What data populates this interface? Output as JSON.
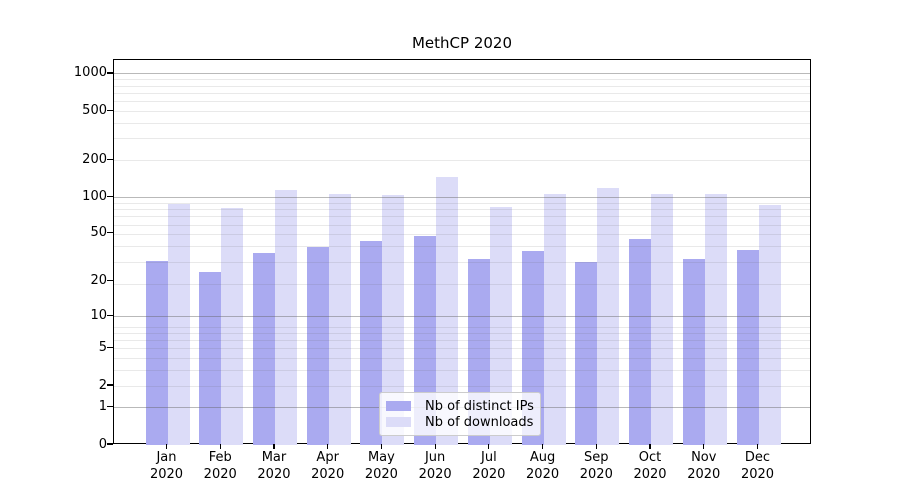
{
  "chart_data": {
    "type": "bar",
    "title": "MethCP 2020",
    "months": [
      "Jan",
      "Feb",
      "Mar",
      "Apr",
      "May",
      "Jun",
      "Jul",
      "Aug",
      "Sep",
      "Oct",
      "Nov",
      "Dec"
    ],
    "year": "2020",
    "categories": [
      "Jan 2020",
      "Feb 2020",
      "Mar 2020",
      "Apr 2020",
      "May 2020",
      "Jun 2020",
      "Jul 2020",
      "Aug 2020",
      "Sep 2020",
      "Oct 2020",
      "Nov 2020",
      "Dec 2020"
    ],
    "series": [
      {
        "name": "Nb of distinct IPs",
        "color": "#aaaaf0",
        "values": [
          30,
          24,
          35,
          39,
          44,
          48,
          31,
          36,
          29,
          45,
          31,
          37
        ]
      },
      {
        "name": "Nb of downloads",
        "color": "#dcdcf8",
        "values": [
          88,
          82,
          115,
          107,
          104,
          145,
          83,
          106,
          119,
          107,
          106,
          86
        ]
      }
    ],
    "y_ticks": [
      0,
      1,
      2,
      5,
      10,
      20,
      50,
      100,
      200,
      500,
      1000
    ],
    "major_grid_values": [
      1,
      10,
      100,
      1000
    ],
    "scale": "log10(1+x)",
    "ylim": [
      0,
      1300
    ],
    "grid": "on",
    "legend_position": "lower center",
    "xlabel": "",
    "ylabel": ""
  }
}
